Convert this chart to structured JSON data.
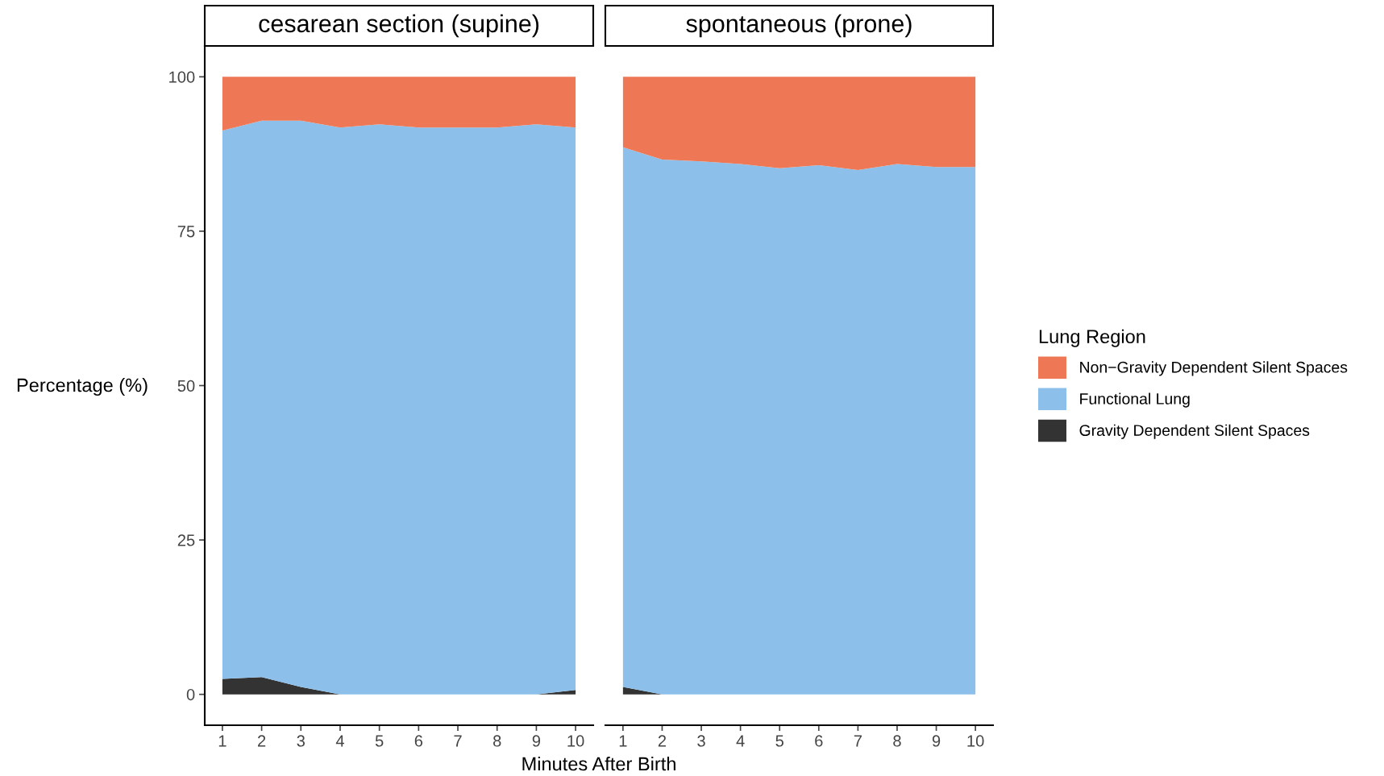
{
  "chart_data": [
    {
      "type": "area",
      "stacked": true,
      "title": "cesarean section (supine)",
      "ylabel": "Percentage (%)",
      "xlabel": "Minutes After Birth",
      "x": [
        1,
        2,
        3,
        4,
        5,
        6,
        7,
        8,
        9,
        10
      ],
      "xlim": [
        0.55,
        10.45
      ],
      "xticks": [
        1,
        2,
        3,
        4,
        5,
        6,
        7,
        8,
        9,
        10
      ],
      "ylim": [
        -5,
        105
      ],
      "yticks": [
        0,
        25,
        50,
        75,
        100
      ],
      "grid": false,
      "series": [
        {
          "color": "#333333",
          "values": [
            2.5,
            2.8,
            1.2,
            0,
            0,
            0,
            0,
            0,
            0,
            0.7
          ]
        },
        {
          "color": "#8cc0ea",
          "values": [
            88.8,
            90.1,
            91.7,
            91.8,
            92.3,
            91.8,
            91.8,
            91.8,
            92.3,
            91.1
          ]
        },
        {
          "color": "#ee7855",
          "values": [
            8.7,
            7.1,
            7.1,
            8.2,
            7.7,
            8.2,
            8.2,
            8.2,
            7.7,
            8.2
          ]
        }
      ]
    },
    {
      "type": "area",
      "stacked": true,
      "title": "spontaneous (prone)",
      "legend_title": "Lung Region",
      "x": [
        1,
        2,
        3,
        4,
        5,
        6,
        7,
        8,
        9,
        10
      ],
      "xlim": [
        0.55,
        10.45
      ],
      "xticks": [
        1,
        2,
        3,
        4,
        5,
        6,
        7,
        8,
        9,
        10
      ],
      "ylim": [
        -5,
        105
      ],
      "tick_labels": "x",
      "grid": false,
      "legend": "right",
      "series": [
        {
          "name": "Gravity Dependent Silent Spaces",
          "color": "#333333",
          "values": [
            1.2,
            0,
            0,
            0,
            0,
            0,
            0,
            0,
            0,
            0
          ]
        },
        {
          "name": "Functional Lung",
          "color": "#8cc0ea",
          "values": [
            87.4,
            86.6,
            86.3,
            85.9,
            85.2,
            85.7,
            84.9,
            85.9,
            85.4,
            85.4
          ]
        },
        {
          "name": "Non−Gravity Dependent Silent Spaces",
          "color": "#ee7855",
          "values": [
            11.4,
            13.4,
            13.7,
            14.1,
            14.8,
            14.3,
            15.1,
            14.1,
            14.6,
            14.6
          ]
        }
      ]
    }
  ]
}
